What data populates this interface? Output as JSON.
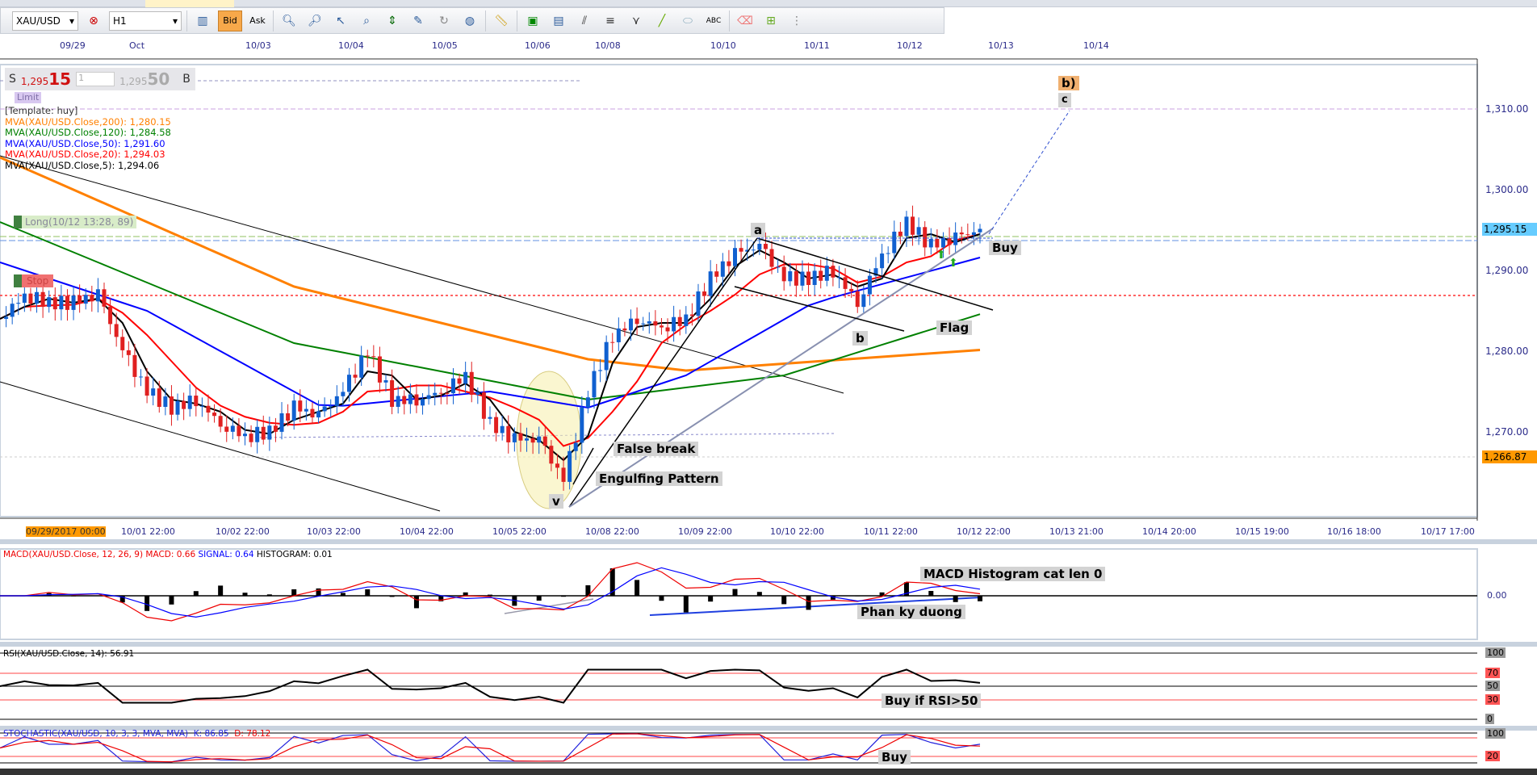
{
  "toolbar": {
    "symbol": "XAU/USD",
    "timeframe": "H1",
    "bid_label": "Bid",
    "ask_label": "Ask"
  },
  "trade_panel": {
    "sell_label": "S",
    "sell_big": "1,295",
    "sell_pips": "15",
    "quantity": "1",
    "buy_big": "1,295",
    "buy_pips": "50",
    "buy_label": "B",
    "limit_label": "Limit"
  },
  "legend": {
    "template": "[Template: huy]",
    "ma200": "MVA(XAU/USD.Close,200): 1,280.15",
    "ma120": "MVA(XAU/USD.Close,120): 1,284.58",
    "ma50": "MVA(XAU/USD.Close,50): 1,291.60",
    "ma20": "MVA(XAU/USD.Close,20): 1,294.03",
    "ma5": "MVA(XAU/USD.Close,5): 1,294.06"
  },
  "orders": {
    "long": "Long(10/12 13:28, 89)",
    "stop": "Stop"
  },
  "top_dates": [
    "09/29",
    "Oct",
    "10/03",
    "10/04",
    "10/05",
    "10/06",
    "10/08",
    "10/10",
    "10/11",
    "10/12",
    "10/13",
    "10/14"
  ],
  "bottom_times": [
    "09/29/2017 00:00",
    "10/01 22:00",
    "10/02 22:00",
    "10/03 22:00",
    "10/04 22:00",
    "10/05 22:00",
    "10/08 22:00",
    "10/09 22:00",
    "10/10 22:00",
    "10/11 22:00",
    "10/12 22:00",
    "10/13 21:00",
    "10/14 20:00",
    "10/15 19:00",
    "10/16 18:00",
    "10/17 17:00"
  ],
  "price_axis": [
    "1,310.00",
    "1,300.00",
    "1,290.00",
    "1,280.00",
    "1,270.00"
  ],
  "current_price": "1,295.15",
  "marker_price": "1,266.87",
  "colors": {
    "ma200": "#ff8000",
    "ma120": "#008000",
    "ma50": "#0000ff",
    "ma20": "#ff0000",
    "ma5": "#000000",
    "up": "#1060d0",
    "down": "#e02020",
    "current": "#66ccff",
    "marker": "#ff9900"
  },
  "closes": [
    1284,
    1287,
    1286,
    1286,
    1287,
    1280,
    1275,
    1273,
    1274,
    1271,
    1269.5,
    1270,
    1273,
    1272,
    1275,
    1280,
    1274,
    1274,
    1275,
    1277,
    1271,
    1269,
    1269,
    1264,
    1275,
    1282,
    1284,
    1283,
    1284,
    1289,
    1292,
    1293,
    1289,
    1289,
    1290,
    1286,
    1292,
    1296,
    1293,
    1294,
    1295
  ],
  "annotations": {
    "a": "a",
    "b": "b",
    "v": "v",
    "wave_b": "b)",
    "wave_c": "c",
    "buy": "Buy",
    "flag": "Flag",
    "false_break": "False break",
    "engulfing": "Engulfing Pattern",
    "macd_note": "MACD Histogram cat len 0",
    "divergence": "Phan ky duong",
    "rsi_note": "Buy if RSI>50",
    "stoch_buy": "Buy"
  },
  "macd": {
    "title": "MACD(XAU/USD.Close, 12, 26, 9)",
    "macd": "MACD: 0.66",
    "signal": "SIGNAL: 0.64",
    "histogram": "HISTOGRAM: 0.01",
    "zero": "0.00"
  },
  "rsi": {
    "title": "RSI(XAU/USD.Close, 14): 56.91",
    "levels": [
      "100",
      "70",
      "50",
      "30",
      "0"
    ]
  },
  "stochastic": {
    "title": "STOCHASTIC(XAU/USD, 10, 3, 3, MVA, MVA)",
    "k": "K: 86.85",
    "d": "D: 78.12",
    "levels": [
      "100",
      "20"
    ]
  }
}
